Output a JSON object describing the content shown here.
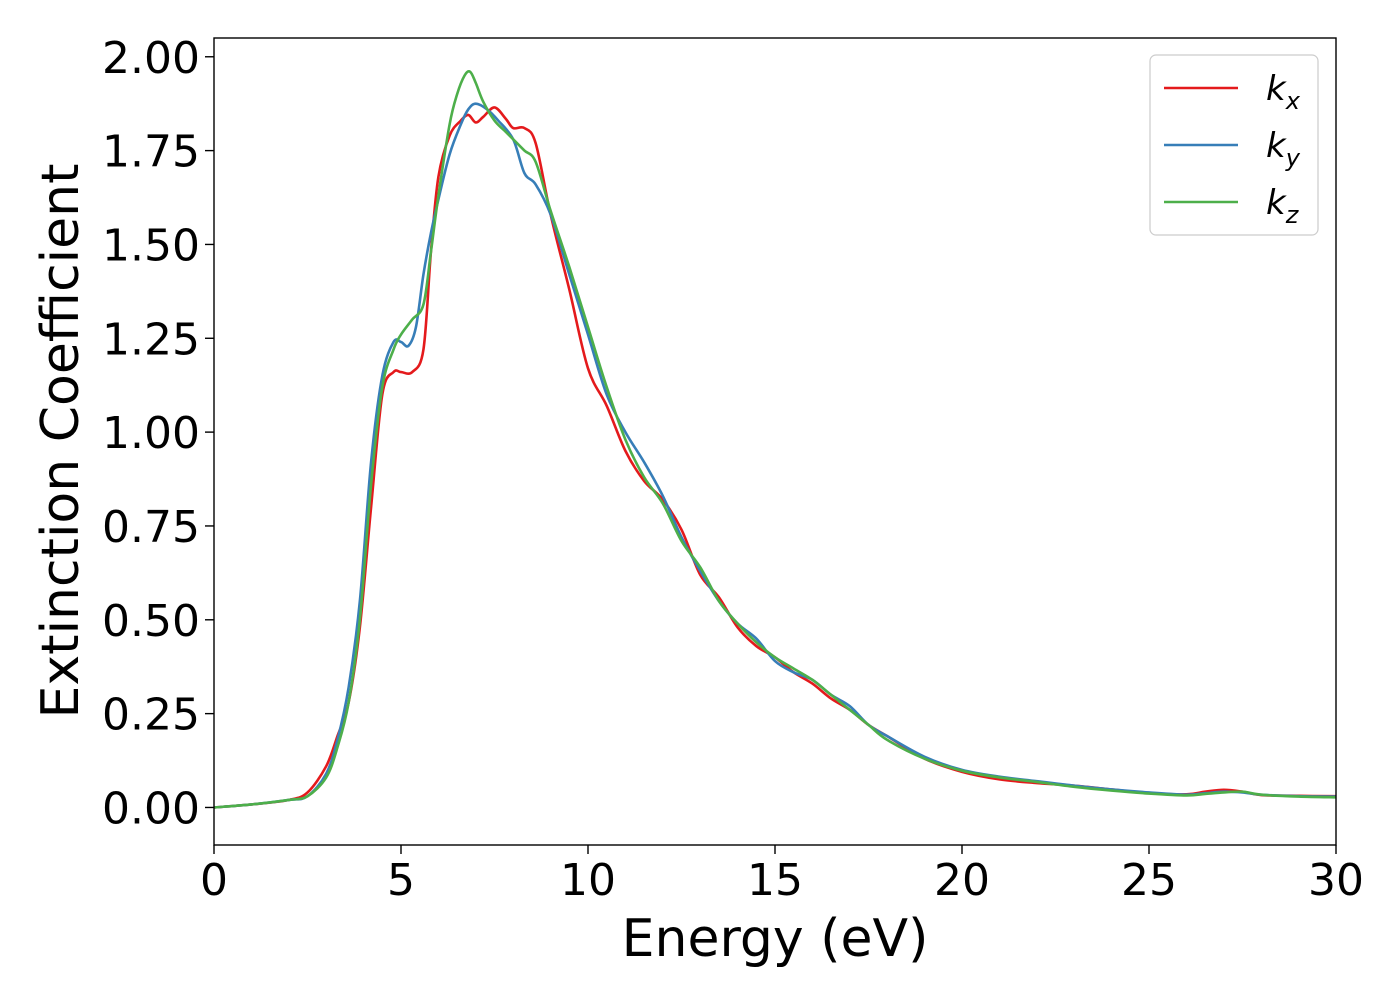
{
  "chart_data": {
    "type": "line",
    "xlabel": "Energy (eV)",
    "ylabel": "Extinction Coefficient",
    "xlim": [
      0,
      30
    ],
    "ylim": [
      -0.1,
      2.05
    ],
    "xticks": [
      0,
      5,
      10,
      15,
      20,
      25,
      30
    ],
    "yticks": [
      0.0,
      0.25,
      0.5,
      0.75,
      1.0,
      1.25,
      1.5,
      1.75,
      2.0
    ],
    "xtick_labels": [
      "0",
      "5",
      "10",
      "15",
      "20",
      "25",
      "30"
    ],
    "ytick_labels": [
      "0.00",
      "0.25",
      "0.50",
      "0.75",
      "1.00",
      "1.25",
      "1.50",
      "1.75",
      "2.00"
    ],
    "grid": false,
    "legend_position": "top-right",
    "series": [
      {
        "name": "k",
        "subscript": "x",
        "color": "#e41a1c",
        "x": [
          0,
          1,
          2,
          2.5,
          3,
          3.3,
          3.6,
          3.9,
          4.2,
          4.5,
          4.8,
          5.0,
          5.3,
          5.6,
          5.8,
          6.0,
          6.3,
          6.6,
          6.8,
          7.0,
          7.2,
          7.5,
          7.8,
          8.0,
          8.3,
          8.6,
          9.0,
          9.5,
          10.0,
          10.5,
          11.0,
          11.5,
          12.0,
          12.5,
          13.0,
          13.5,
          14.0,
          14.5,
          15.0,
          15.5,
          16.0,
          16.5,
          17.0,
          17.5,
          18.0,
          19.0,
          20.0,
          21.0,
          22.0,
          23.0,
          24.0,
          25.0,
          26.0,
          26.5,
          27.0,
          27.5,
          28.0,
          29.0,
          30.0
        ],
        "y": [
          0.0,
          0.008,
          0.02,
          0.04,
          0.11,
          0.19,
          0.28,
          0.48,
          0.8,
          1.1,
          1.16,
          1.16,
          1.16,
          1.22,
          1.48,
          1.68,
          1.79,
          1.83,
          1.845,
          1.825,
          1.84,
          1.865,
          1.835,
          1.81,
          1.81,
          1.77,
          1.58,
          1.38,
          1.17,
          1.07,
          0.95,
          0.87,
          0.82,
          0.74,
          0.62,
          0.56,
          0.48,
          0.43,
          0.4,
          0.36,
          0.33,
          0.29,
          0.26,
          0.22,
          0.19,
          0.13,
          0.095,
          0.075,
          0.065,
          0.058,
          0.048,
          0.038,
          0.035,
          0.042,
          0.047,
          0.042,
          0.033,
          0.031,
          0.03
        ]
      },
      {
        "name": "k",
        "subscript": "y",
        "color": "#377eb8",
        "x": [
          0,
          1,
          2,
          2.5,
          3,
          3.3,
          3.6,
          3.9,
          4.2,
          4.5,
          4.8,
          5.0,
          5.2,
          5.4,
          5.6,
          5.8,
          6.0,
          6.3,
          6.6,
          6.8,
          7.0,
          7.3,
          7.6,
          8.0,
          8.3,
          8.6,
          9.0,
          9.5,
          10.0,
          10.5,
          11.0,
          11.5,
          12.0,
          12.5,
          13.0,
          13.5,
          14.0,
          14.5,
          15.0,
          15.5,
          16.0,
          16.5,
          17.0,
          17.5,
          18.0,
          19.0,
          20.0,
          21.0,
          22.0,
          23.0,
          24.0,
          25.0,
          26.0,
          26.5,
          27.0,
          27.5,
          28.0,
          29.0,
          30.0
        ],
        "y": [
          0.0,
          0.008,
          0.02,
          0.03,
          0.09,
          0.18,
          0.32,
          0.55,
          0.92,
          1.15,
          1.24,
          1.24,
          1.23,
          1.28,
          1.42,
          1.53,
          1.62,
          1.74,
          1.82,
          1.86,
          1.875,
          1.86,
          1.83,
          1.78,
          1.69,
          1.66,
          1.58,
          1.42,
          1.26,
          1.1,
          1.0,
          0.92,
          0.83,
          0.72,
          0.63,
          0.55,
          0.49,
          0.45,
          0.39,
          0.36,
          0.34,
          0.3,
          0.27,
          0.22,
          0.19,
          0.135,
          0.1,
          0.082,
          0.07,
          0.058,
          0.048,
          0.04,
          0.034,
          0.038,
          0.042,
          0.04,
          0.034,
          0.03,
          0.029
        ]
      },
      {
        "name": "k",
        "subscript": "z",
        "color": "#4daf4a",
        "x": [
          0,
          1,
          2,
          2.5,
          3,
          3.3,
          3.6,
          3.9,
          4.2,
          4.5,
          4.8,
          5.0,
          5.3,
          5.6,
          5.8,
          6.0,
          6.3,
          6.5,
          6.7,
          6.85,
          7.0,
          7.2,
          7.5,
          7.8,
          8.0,
          8.3,
          8.6,
          9.0,
          9.5,
          10.0,
          10.5,
          11.0,
          11.5,
          12.0,
          12.5,
          13.0,
          13.5,
          14.0,
          14.5,
          15.0,
          15.5,
          16.0,
          16.5,
          17.0,
          17.5,
          18.0,
          19.0,
          20.0,
          21.0,
          22.0,
          23.0,
          24.0,
          25.0,
          26.0,
          26.5,
          27.0,
          27.5,
          28.0,
          29.0,
          30.0
        ],
        "y": [
          0.0,
          0.008,
          0.02,
          0.03,
          0.08,
          0.16,
          0.28,
          0.5,
          0.86,
          1.12,
          1.22,
          1.26,
          1.3,
          1.34,
          1.48,
          1.63,
          1.82,
          1.9,
          1.95,
          1.96,
          1.93,
          1.88,
          1.83,
          1.8,
          1.78,
          1.75,
          1.72,
          1.59,
          1.44,
          1.28,
          1.12,
          0.98,
          0.88,
          0.81,
          0.71,
          0.64,
          0.55,
          0.49,
          0.44,
          0.4,
          0.37,
          0.34,
          0.3,
          0.26,
          0.22,
          0.18,
          0.13,
          0.098,
          0.08,
          0.068,
          0.055,
          0.045,
          0.037,
          0.032,
          0.036,
          0.04,
          0.042,
          0.034,
          0.029,
          0.027
        ]
      }
    ]
  }
}
